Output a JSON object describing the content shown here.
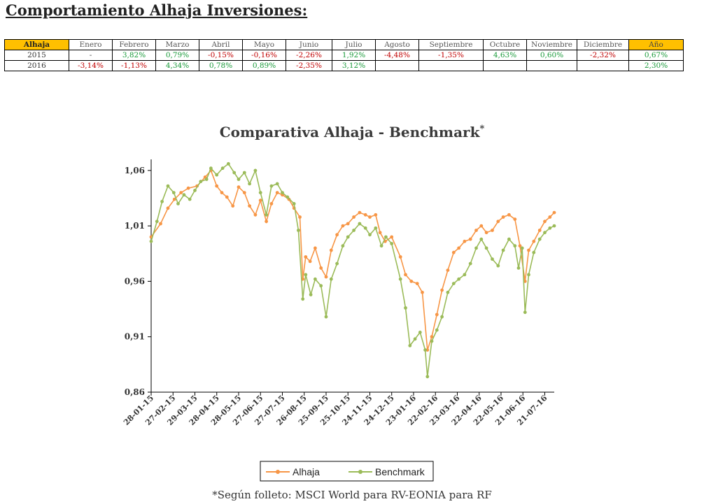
{
  "page": {
    "title": "Comportamiento Alhaja Inversiones:"
  },
  "table": {
    "headers": [
      "Alhaja",
      "Enero",
      "Febrero",
      "Marzo",
      "Abril",
      "Mayo",
      "Junio",
      "Julio",
      "Agosto",
      "Septiembre",
      "Octubre",
      "Noviembre",
      "Diciembre",
      "Año"
    ],
    "rows": [
      {
        "year": "2015",
        "values": [
          "-",
          "3,82%",
          "0,79%",
          "-0,15%",
          "-0,16%",
          "-2,26%",
          "1,92%",
          "-4,48%",
          "-1,35%",
          "4,63%",
          "0,60%",
          "-2,32%",
          "0,67%"
        ]
      },
      {
        "year": "2016",
        "values": [
          "-3,14%",
          "-1,13%",
          "4,34%",
          "0,78%",
          "0,89%",
          "-2,35%",
          "3,12%",
          "",
          "",
          "",
          "",
          "",
          "2,30%"
        ]
      }
    ]
  },
  "colors": {
    "alhaja": "#f79646",
    "benchmark": "#9bbb59",
    "highlight": "#ffc000",
    "positive": "#1a9a3a",
    "negative": "#c00000"
  },
  "footnote": "*Según folleto: MSCI World para RV-EONIA para RF",
  "chart_data": {
    "type": "line",
    "title": "Comparativa Alhaja - Benchmark",
    "title_superscript": "*",
    "xlabel": "",
    "ylabel": "",
    "ylim": [
      0.86,
      1.07
    ],
    "yticks": [
      "1,06",
      "1,01",
      "0,96",
      "0,91",
      "0,86"
    ],
    "ytick_values": [
      1.06,
      1.01,
      0.96,
      0.91,
      0.86
    ],
    "xticks": [
      "28-01-15",
      "27-02-15",
      "29-03-15",
      "28-04-15",
      "28-05-15",
      "27-06-15",
      "27-07-15",
      "26-08-15",
      "25-09-15",
      "25-10-15",
      "24-11-15",
      "24-12-15",
      "23-01-16",
      "22-02-16",
      "23-03-16",
      "22-04-16",
      "22-05-16",
      "21-06-16",
      "21-07-16"
    ],
    "x_start": "2015-01-28",
    "x_end": "2016-08-03",
    "grid": false,
    "legend_position": "bottom",
    "series": [
      {
        "name": "Alhaja",
        "color": "#f79646",
        "points": [
          [
            "2015-01-28",
            1.0
          ],
          [
            "2015-02-10",
            1.012
          ],
          [
            "2015-02-20",
            1.026
          ],
          [
            "2015-03-01",
            1.034
          ],
          [
            "2015-03-10",
            1.04
          ],
          [
            "2015-03-20",
            1.044
          ],
          [
            "2015-04-01",
            1.046
          ],
          [
            "2015-04-12",
            1.054
          ],
          [
            "2015-04-20",
            1.06
          ],
          [
            "2015-04-28",
            1.046
          ],
          [
            "2015-05-05",
            1.04
          ],
          [
            "2015-05-12",
            1.036
          ],
          [
            "2015-05-20",
            1.028
          ],
          [
            "2015-05-28",
            1.045
          ],
          [
            "2015-06-05",
            1.04
          ],
          [
            "2015-06-12",
            1.028
          ],
          [
            "2015-06-20",
            1.02
          ],
          [
            "2015-06-27",
            1.033
          ],
          [
            "2015-07-05",
            1.014
          ],
          [
            "2015-07-12",
            1.03
          ],
          [
            "2015-07-20",
            1.04
          ],
          [
            "2015-07-27",
            1.038
          ],
          [
            "2015-08-05",
            1.034
          ],
          [
            "2015-08-12",
            1.026
          ],
          [
            "2015-08-20",
            1.018
          ],
          [
            "2015-08-24",
            0.962
          ],
          [
            "2015-08-28",
            0.982
          ],
          [
            "2015-09-03",
            0.978
          ],
          [
            "2015-09-10",
            0.99
          ],
          [
            "2015-09-18",
            0.972
          ],
          [
            "2015-09-25",
            0.964
          ],
          [
            "2015-10-02",
            0.988
          ],
          [
            "2015-10-10",
            1.002
          ],
          [
            "2015-10-18",
            1.01
          ],
          [
            "2015-10-25",
            1.012
          ],
          [
            "2015-11-02",
            1.018
          ],
          [
            "2015-11-10",
            1.022
          ],
          [
            "2015-11-18",
            1.02
          ],
          [
            "2015-11-24",
            1.018
          ],
          [
            "2015-12-02",
            1.02
          ],
          [
            "2015-12-08",
            1.004
          ],
          [
            "2015-12-15",
            0.996
          ],
          [
            "2015-12-24",
            1.0
          ],
          [
            "2016-01-05",
            0.982
          ],
          [
            "2016-01-12",
            0.966
          ],
          [
            "2016-01-20",
            0.96
          ],
          [
            "2016-01-28",
            0.958
          ],
          [
            "2016-02-04",
            0.95
          ],
          [
            "2016-02-11",
            0.898
          ],
          [
            "2016-02-17",
            0.91
          ],
          [
            "2016-02-24",
            0.93
          ],
          [
            "2016-03-02",
            0.952
          ],
          [
            "2016-03-10",
            0.97
          ],
          [
            "2016-03-18",
            0.986
          ],
          [
            "2016-03-25",
            0.99
          ],
          [
            "2016-04-02",
            0.996
          ],
          [
            "2016-04-10",
            0.998
          ],
          [
            "2016-04-18",
            1.006
          ],
          [
            "2016-04-25",
            1.01
          ],
          [
            "2016-05-02",
            1.004
          ],
          [
            "2016-05-10",
            1.006
          ],
          [
            "2016-05-18",
            1.014
          ],
          [
            "2016-05-25",
            1.018
          ],
          [
            "2016-06-02",
            1.02
          ],
          [
            "2016-06-10",
            1.016
          ],
          [
            "2016-06-17",
            0.992
          ],
          [
            "2016-06-24",
            0.96
          ],
          [
            "2016-06-29",
            0.988
          ],
          [
            "2016-07-06",
            0.996
          ],
          [
            "2016-07-14",
            1.006
          ],
          [
            "2016-07-21",
            1.014
          ],
          [
            "2016-07-28",
            1.018
          ],
          [
            "2016-08-03",
            1.022
          ]
        ]
      },
      {
        "name": "Benchmark",
        "color": "#9bbb59",
        "points": [
          [
            "2015-01-28",
            0.996
          ],
          [
            "2015-02-05",
            1.014
          ],
          [
            "2015-02-12",
            1.032
          ],
          [
            "2015-02-20",
            1.046
          ],
          [
            "2015-02-28",
            1.04
          ],
          [
            "2015-03-06",
            1.03
          ],
          [
            "2015-03-14",
            1.038
          ],
          [
            "2015-03-22",
            1.034
          ],
          [
            "2015-03-29",
            1.042
          ],
          [
            "2015-04-06",
            1.05
          ],
          [
            "2015-04-14",
            1.052
          ],
          [
            "2015-04-20",
            1.062
          ],
          [
            "2015-04-28",
            1.056
          ],
          [
            "2015-05-06",
            1.062
          ],
          [
            "2015-05-14",
            1.066
          ],
          [
            "2015-05-22",
            1.058
          ],
          [
            "2015-05-28",
            1.052
          ],
          [
            "2015-06-05",
            1.058
          ],
          [
            "2015-06-12",
            1.048
          ],
          [
            "2015-06-20",
            1.06
          ],
          [
            "2015-06-27",
            1.04
          ],
          [
            "2015-07-05",
            1.02
          ],
          [
            "2015-07-12",
            1.046
          ],
          [
            "2015-07-20",
            1.048
          ],
          [
            "2015-07-27",
            1.04
          ],
          [
            "2015-08-03",
            1.036
          ],
          [
            "2015-08-12",
            1.03
          ],
          [
            "2015-08-18",
            1.006
          ],
          [
            "2015-08-24",
            0.944
          ],
          [
            "2015-08-28",
            0.966
          ],
          [
            "2015-09-04",
            0.948
          ],
          [
            "2015-09-10",
            0.962
          ],
          [
            "2015-09-18",
            0.956
          ],
          [
            "2015-09-25",
            0.928
          ],
          [
            "2015-10-02",
            0.962
          ],
          [
            "2015-10-10",
            0.976
          ],
          [
            "2015-10-18",
            0.992
          ],
          [
            "2015-10-25",
            1.0
          ],
          [
            "2015-11-02",
            1.006
          ],
          [
            "2015-11-10",
            1.012
          ],
          [
            "2015-11-18",
            1.008
          ],
          [
            "2015-11-24",
            1.002
          ],
          [
            "2015-12-02",
            1.008
          ],
          [
            "2015-12-10",
            0.992
          ],
          [
            "2015-12-16",
            1.0
          ],
          [
            "2015-12-24",
            0.994
          ],
          [
            "2016-01-05",
            0.962
          ],
          [
            "2016-01-12",
            0.936
          ],
          [
            "2016-01-18",
            0.902
          ],
          [
            "2016-01-25",
            0.908
          ],
          [
            "2016-02-01",
            0.914
          ],
          [
            "2016-02-08",
            0.898
          ],
          [
            "2016-02-11",
            0.874
          ],
          [
            "2016-02-17",
            0.906
          ],
          [
            "2016-02-24",
            0.916
          ],
          [
            "2016-03-02",
            0.928
          ],
          [
            "2016-03-10",
            0.95
          ],
          [
            "2016-03-18",
            0.958
          ],
          [
            "2016-03-25",
            0.962
          ],
          [
            "2016-04-02",
            0.966
          ],
          [
            "2016-04-10",
            0.976
          ],
          [
            "2016-04-18",
            0.99
          ],
          [
            "2016-04-25",
            0.998
          ],
          [
            "2016-05-02",
            0.99
          ],
          [
            "2016-05-10",
            0.98
          ],
          [
            "2016-05-18",
            0.974
          ],
          [
            "2016-05-25",
            0.988
          ],
          [
            "2016-06-02",
            0.998
          ],
          [
            "2016-06-10",
            0.992
          ],
          [
            "2016-06-15",
            0.972
          ],
          [
            "2016-06-20",
            0.99
          ],
          [
            "2016-06-24",
            0.932
          ],
          [
            "2016-06-29",
            0.966
          ],
          [
            "2016-07-06",
            0.986
          ],
          [
            "2016-07-14",
            0.998
          ],
          [
            "2016-07-21",
            1.004
          ],
          [
            "2016-07-28",
            1.008
          ],
          [
            "2016-08-03",
            1.01
          ]
        ]
      }
    ]
  }
}
